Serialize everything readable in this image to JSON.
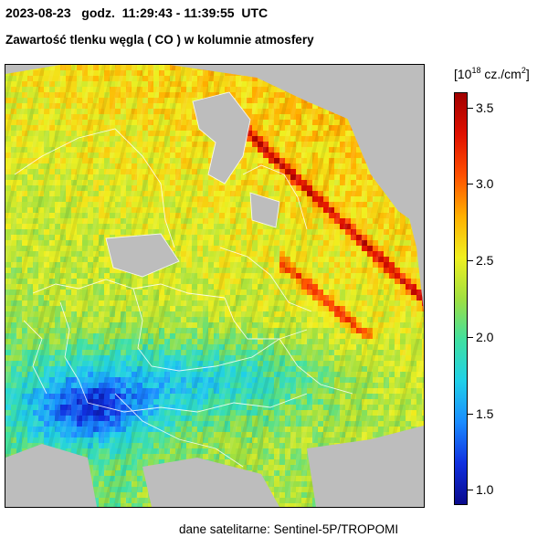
{
  "header": {
    "datetime_line": "2023-08-23   godz.  11:29:43 - 11:39:55  UTC",
    "title": "Zawartość tlenku węgla ( CO ) w kolumnie atmosfery"
  },
  "colorbar": {
    "unit_prefix": "[10",
    "unit_exponent": "18",
    "unit_middle": " cz./cm",
    "unit_sup2": "2",
    "unit_suffix": "]",
    "min": 0.9,
    "max": 3.6,
    "ticks": [
      "1.0",
      "1.5",
      "2.0",
      "2.5",
      "3.0",
      "3.5"
    ],
    "colors": [
      "#0a0a8c",
      "#1030e0",
      "#1a8cff",
      "#20d0e8",
      "#40e0a0",
      "#a0e040",
      "#f0f020",
      "#ffb000",
      "#ff5000",
      "#e01000",
      "#a00000"
    ]
  },
  "footer": {
    "source": "dane satelitarne: Sentinel-5P/TROPOMI"
  }
}
